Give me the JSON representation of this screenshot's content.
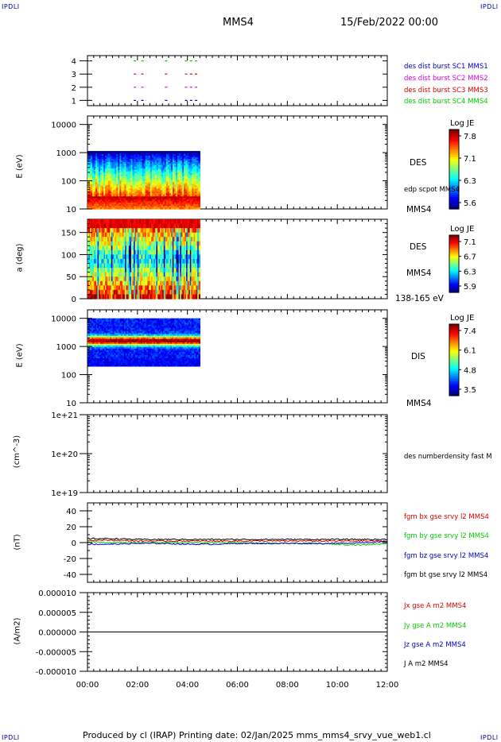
{
  "header": {
    "corner_left_top": "IPDLI",
    "corner_right_top": "IPDLI",
    "corner_left_bottom": "IPDLI",
    "corner_right_bottom": "IPDLI",
    "spacecraft": "MMS4",
    "date": "15/Feb/2022 00:00"
  },
  "footer": {
    "text": "Produced by cl (IRAP)   Printing date: 02/Jan/2025   mms_mms4_srvy_vue_web1.cl"
  },
  "colors": {
    "blue": "#0000cc",
    "magenta": "#dd00dd",
    "red": "#dd0000",
    "green": "#00cc00",
    "black": "#000000"
  },
  "chart_data": [
    {
      "type": "scatter",
      "panel": "burst-availability",
      "ylabel": "",
      "yticks": [
        "4",
        "3",
        "2",
        "1"
      ],
      "ylim": [
        0.6,
        4.4
      ],
      "xlim_hours": [
        0,
        12
      ],
      "series": [
        {
          "name": "des dist burst SC1 MMS1",
          "color": "blue",
          "y": 1,
          "segments_hours": [
            [
              0.05,
              0.1
            ],
            [
              1.85,
              2.05
            ],
            [
              2.15,
              2.35
            ],
            [
              3.1,
              3.25
            ],
            [
              3.9,
              4.0
            ],
            [
              4.1,
              4.2
            ],
            [
              4.3,
              4.4
            ]
          ]
        },
        {
          "name": "des dist burst SC2 MMS2",
          "color": "magenta",
          "y": 2,
          "segments_hours": [
            [
              0.05,
              0.1
            ],
            [
              1.85,
              2.05
            ],
            [
              2.15,
              2.35
            ],
            [
              3.1,
              3.25
            ],
            [
              3.9,
              4.0
            ],
            [
              4.1,
              4.2
            ],
            [
              4.3,
              4.4
            ]
          ]
        },
        {
          "name": "des dist burst SC3 MMS3",
          "color": "red",
          "y": 3,
          "segments_hours": [
            [
              0.05,
              0.1
            ],
            [
              1.85,
              2.05
            ],
            [
              2.15,
              2.35
            ],
            [
              3.1,
              3.25
            ],
            [
              3.9,
              4.0
            ],
            [
              4.1,
              4.2
            ],
            [
              4.3,
              4.4
            ]
          ]
        },
        {
          "name": "des dist burst SC4 MMS4",
          "color": "green",
          "y": 4,
          "segments_hours": [
            [
              0.05,
              0.1
            ],
            [
              1.85,
              2.05
            ],
            [
              2.15,
              2.35
            ],
            [
              3.1,
              3.25
            ],
            [
              3.9,
              4.0
            ],
            [
              4.1,
              4.2
            ],
            [
              4.3,
              4.4
            ]
          ]
        }
      ]
    },
    {
      "type": "heatmap",
      "panel": "des-energy",
      "ylabel": "E (eV)",
      "yscale": "log",
      "yticks": [
        "10000",
        "1000",
        "100",
        "10"
      ],
      "ylim": [
        10,
        20000
      ],
      "data_hours": [
        0,
        4.5
      ],
      "data_energy": [
        10,
        1000
      ],
      "colorbar": {
        "label": "Log JE",
        "ticks": [
          "7.8",
          "7.1",
          "6.3",
          "5.6"
        ]
      },
      "side_label": "DES",
      "extra_label": "edp scpot MMS4",
      "spacecraft_label": "MMS4"
    },
    {
      "type": "heatmap",
      "panel": "des-pitch-angle",
      "ylabel": "a (deg)",
      "yticks": [
        "150",
        "100",
        "50",
        "0"
      ],
      "ylim": [
        0,
        180
      ],
      "data_hours": [
        0,
        4.5
      ],
      "colorbar": {
        "label": "Log JE",
        "ticks": [
          "7.1",
          "6.7",
          "6.3",
          "5.9"
        ]
      },
      "side_label": "DES",
      "spacecraft_label": "MMS4",
      "energy_range": "138-165 eV"
    },
    {
      "type": "heatmap",
      "panel": "dis-energy",
      "ylabel": "E (eV)",
      "yscale": "log",
      "yticks": [
        "10000",
        "1000",
        "100",
        "10"
      ],
      "ylim": [
        10,
        20000
      ],
      "data_hours": [
        0,
        4.5
      ],
      "data_energy": [
        200,
        10000
      ],
      "colorbar": {
        "label": "Log JE",
        "ticks": [
          "7.4",
          "6.1",
          "4.8",
          "3.5"
        ]
      },
      "side_label": "DIS",
      "spacecraft_label": "MMS4"
    },
    {
      "type": "line",
      "panel": "density",
      "ylabel": "(cm^-3)",
      "yscale": "log",
      "yticks": [
        "1e+21",
        "1e+20",
        "1e+19"
      ],
      "ylim": [
        1e+19,
        1e+21
      ],
      "series": [
        {
          "name": "des numberdensity fast M",
          "color": "black",
          "x_hours": [],
          "values": []
        }
      ]
    },
    {
      "type": "line",
      "panel": "magnetic-field",
      "ylabel": "(nT)",
      "yticks": [
        "40",
        "20",
        "0",
        "-20",
        "-40"
      ],
      "ylim": [
        -50,
        50
      ],
      "x_hours": [
        0,
        1,
        2,
        3,
        4,
        5,
        6,
        7,
        8,
        9,
        10,
        11,
        12
      ],
      "series": [
        {
          "name": "fgm bx gse srvy l2 MMS4",
          "color": "red",
          "values": [
            3,
            3,
            2,
            2,
            2,
            2,
            2,
            2,
            2,
            2,
            2,
            2,
            2
          ]
        },
        {
          "name": "fgm by gse srvy l2 MMS4",
          "color": "green",
          "values": [
            1,
            0,
            0,
            0,
            0,
            0,
            0,
            -1,
            -1,
            -1,
            -2,
            -3,
            -1
          ]
        },
        {
          "name": "fgm bz gse srvy l2 MMS4",
          "color": "blue",
          "values": [
            -2,
            -2,
            -1,
            -1,
            -2,
            -2,
            -1,
            -1,
            -1,
            -1,
            -1,
            0,
            1
          ]
        },
        {
          "name": "fgm bt gse srvy l2 MMS4",
          "color": "black",
          "values": [
            5,
            5,
            4,
            4,
            4,
            4,
            4,
            4,
            4,
            4,
            4,
            4,
            4
          ]
        }
      ]
    },
    {
      "type": "line",
      "panel": "current-density",
      "ylabel": "(A/m2)",
      "yticks": [
        "0.000010",
        "0.000005",
        "0.000000",
        "-0.000005",
        "-0.000010"
      ],
      "ylim": [
        -1e-05,
        1e-05
      ],
      "x_hours": [
        0,
        12
      ],
      "series": [
        {
          "name": "Jx gse A m2 MMS4",
          "color": "red",
          "values": [
            0,
            0
          ]
        },
        {
          "name": "Jy gse A m2 MMS4",
          "color": "green",
          "values": [
            0,
            0
          ]
        },
        {
          "name": "Jz gse A m2 MMS4",
          "color": "blue",
          "values": [
            0,
            0
          ]
        },
        {
          "name": "J A m2 MMS4",
          "color": "black",
          "values": [
            0,
            0
          ]
        }
      ]
    }
  ],
  "xaxis": {
    "ticks": [
      "00:00",
      "02:00",
      "04:00",
      "06:00",
      "08:00",
      "10:00",
      "12:00"
    ],
    "xlim_hours": [
      0,
      12
    ]
  }
}
